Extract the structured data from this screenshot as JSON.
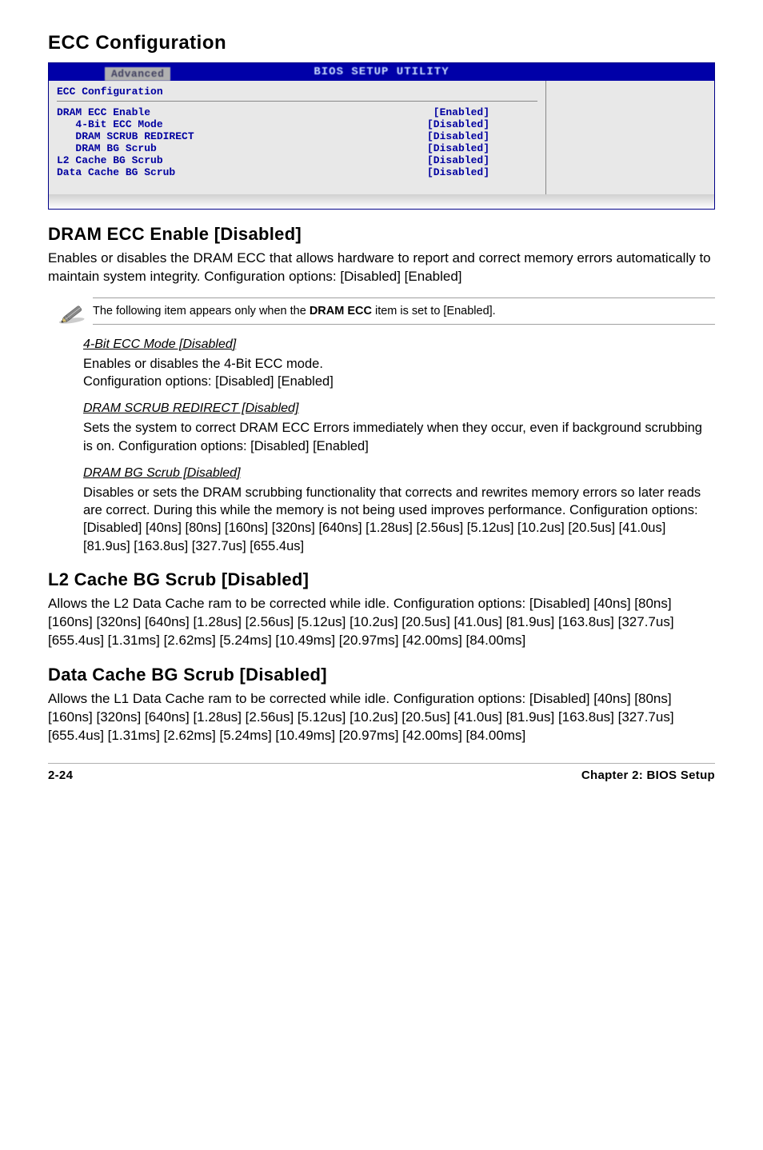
{
  "titles": {
    "ecc_config": "ECC Configuration",
    "dram_ecc_enable": "DRAM ECC Enable [Disabled]",
    "l2_scrub": "L2 Cache BG Scrub [Disabled]",
    "data_scrub": "Data Cache BG Scrub [Disabled]"
  },
  "bios": {
    "header": "BIOS SETUP UTILITY",
    "tab": "Advanced",
    "group": "ECC Configuration",
    "rows": [
      {
        "label": "DRAM ECC Enable",
        "value": "[Enabled]"
      },
      {
        "label": "   4-Bit ECC Mode",
        "value": "[Disabled]"
      },
      {
        "label": "   DRAM SCRUB REDIRECT",
        "value": "[Disabled]"
      },
      {
        "label": "   DRAM BG Scrub",
        "value": "[Disabled]"
      },
      {
        "label": "L2 Cache BG Scrub",
        "value": "[Disabled]"
      },
      {
        "label": "Data Cache BG Scrub",
        "value": "[Disabled]"
      }
    ],
    "colors": {
      "header_bg": "#0000a8",
      "body_bg": "#e8e8e8",
      "text": "#0000a0"
    }
  },
  "para_dram_ecc": "Enables or disables the DRAM ECC that allows hardware to report and correct memory errors automatically to maintain system integrity. Configuration options: [Disabled] [Enabled]",
  "note": {
    "pre": "The following item appears only when the ",
    "bold": "DRAM ECC",
    "post": " item is set to [Enabled]."
  },
  "subitems": {
    "fourbit_head": "4-Bit ECC Mode [Disabled]",
    "fourbit_body": "Enables or disables the 4-Bit ECC mode.\nConfiguration options: [Disabled] [Enabled]",
    "redirect_head": "DRAM SCRUB REDIRECT [Disabled]",
    "redirect_body": "Sets the system to correct DRAM ECC Errors immediately when they occur, even if background scrubbing is on. Configuration options: [Disabled] [Enabled]",
    "bgscrub_head": "DRAM BG Scrub [Disabled]",
    "bgscrub_body": "Disables or sets the DRAM scrubbing functionality that corrects and rewrites memory errors so later reads are correct. During this while the memory is not being used improves performance. Configuration options: [Disabled] [40ns] [80ns] [160ns] [320ns] [640ns] [1.28us] [2.56us] [5.12us] [10.2us] [20.5us] [41.0us] [81.9us] [163.8us] [327.7us] [655.4us]"
  },
  "para_l2": "Allows the L2 Data Cache ram to be corrected while idle. Configuration options: [Disabled] [40ns] [80ns] [160ns] [320ns] [640ns] [1.28us] [2.56us] [5.12us] [10.2us] [20.5us] [41.0us] [81.9us] [163.8us] [327.7us] [655.4us] [1.31ms] [2.62ms] [5.24ms] [10.49ms] [20.97ms] [42.00ms] [84.00ms]",
  "para_data": "Allows the L1 Data Cache ram to be corrected while idle. Configuration options: [Disabled] [40ns] [80ns] [160ns] [320ns] [640ns] [1.28us] [2.56us] [5.12us] [10.2us] [20.5us] [41.0us] [81.9us] [163.8us] [327.7us] [655.4us] [1.31ms] [2.62ms] [5.24ms] [10.49ms] [20.97ms] [42.00ms] [84.00ms]",
  "footer": {
    "left": "2-24",
    "right": "Chapter 2: BIOS Setup"
  }
}
